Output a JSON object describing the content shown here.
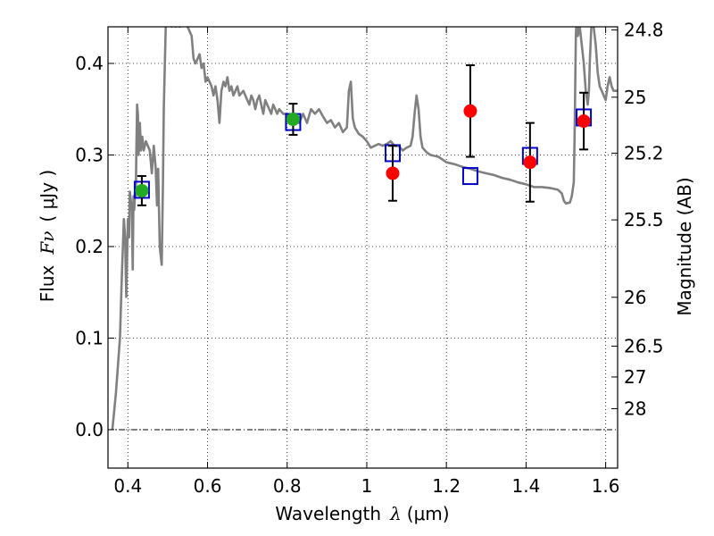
{
  "chart_data": {
    "type": "scatter",
    "title": "",
    "xlabel": "Wavelength",
    "xlabel_symbol": "λ",
    "xlabel_unit": "(μm)",
    "ylabel": "Flux",
    "ylabel_symbol": "Fν",
    "ylabel_unit": "( μJy )",
    "y2label": "Magnitude (AB)",
    "xlim": [
      0.35,
      1.63
    ],
    "ylim": [
      -0.042,
      0.44
    ],
    "grid": true,
    "legend": "none",
    "x_ticks": [
      {
        "value": 0.4,
        "label": "0.4"
      },
      {
        "value": 0.6,
        "label": "0.6"
      },
      {
        "value": 0.8,
        "label": "0.8"
      },
      {
        "value": 1.0,
        "label": "1"
      },
      {
        "value": 1.2,
        "label": "1.2"
      },
      {
        "value": 1.4,
        "label": "1.4"
      },
      {
        "value": 1.6,
        "label": "1.6"
      }
    ],
    "y_ticks": [
      {
        "value": 0.0,
        "label": "0.0"
      },
      {
        "value": 0.1,
        "label": "0.1"
      },
      {
        "value": 0.2,
        "label": "0.2"
      },
      {
        "value": 0.3,
        "label": "0.3"
      },
      {
        "value": 0.4,
        "label": "0.4"
      }
    ],
    "mag_ticks": [
      {
        "value": 24.8,
        "label": "24.8"
      },
      {
        "value": 25.0,
        "label": "25"
      },
      {
        "value": 25.2,
        "label": "25.2"
      },
      {
        "value": 25.5,
        "label": "25.5"
      },
      {
        "value": 26.0,
        "label": "26"
      },
      {
        "value": 26.5,
        "label": "26.5"
      },
      {
        "value": 27.0,
        "label": "27"
      },
      {
        "value": 28.0,
        "label": "28"
      }
    ],
    "zero_line": 0.0,
    "series": [
      {
        "kind": "model_spectrum",
        "color": "#808080",
        "points": [
          [
            0.361,
            0.0
          ],
          [
            0.37,
            0.04
          ],
          [
            0.38,
            0.1
          ],
          [
            0.385,
            0.17
          ],
          [
            0.39,
            0.23
          ],
          [
            0.393,
            0.21
          ],
          [
            0.396,
            0.145
          ],
          [
            0.4,
            0.23
          ],
          [
            0.403,
            0.21
          ],
          [
            0.405,
            0.26
          ],
          [
            0.41,
            0.24
          ],
          [
            0.412,
            0.175
          ],
          [
            0.414,
            0.255
          ],
          [
            0.416,
            0.24
          ],
          [
            0.418,
            0.26
          ],
          [
            0.42,
            0.255
          ],
          [
            0.421,
            0.3
          ],
          [
            0.423,
            0.355
          ],
          [
            0.425,
            0.345
          ],
          [
            0.427,
            0.3
          ],
          [
            0.43,
            0.335
          ],
          [
            0.433,
            0.305
          ],
          [
            0.436,
            0.32
          ],
          [
            0.44,
            0.305
          ],
          [
            0.445,
            0.315
          ],
          [
            0.45,
            0.31
          ],
          [
            0.455,
            0.305
          ],
          [
            0.46,
            0.28
          ],
          [
            0.465,
            0.31
          ],
          [
            0.47,
            0.285
          ],
          [
            0.473,
            0.245
          ],
          [
            0.476,
            0.285
          ],
          [
            0.48,
            0.2
          ],
          [
            0.485,
            0.18
          ],
          [
            0.488,
            0.27
          ],
          [
            0.49,
            0.35
          ],
          [
            0.495,
            0.44
          ],
          [
            0.505,
            0.46
          ],
          [
            0.51,
            0.44
          ],
          [
            0.515,
            0.45
          ],
          [
            0.52,
            0.44
          ],
          [
            0.525,
            0.45
          ],
          [
            0.53,
            0.44
          ],
          [
            0.54,
            0.45
          ],
          [
            0.55,
            0.44
          ],
          [
            0.56,
            0.43
          ],
          [
            0.565,
            0.405
          ],
          [
            0.57,
            0.4
          ],
          [
            0.58,
            0.41
          ],
          [
            0.585,
            0.395
          ],
          [
            0.59,
            0.4
          ],
          [
            0.595,
            0.38
          ],
          [
            0.6,
            0.385
          ],
          [
            0.605,
            0.38
          ],
          [
            0.61,
            0.375
          ],
          [
            0.615,
            0.365
          ],
          [
            0.62,
            0.375
          ],
          [
            0.625,
            0.36
          ],
          [
            0.63,
            0.335
          ],
          [
            0.635,
            0.37
          ],
          [
            0.64,
            0.38
          ],
          [
            0.645,
            0.375
          ],
          [
            0.65,
            0.385
          ],
          [
            0.655,
            0.37
          ],
          [
            0.66,
            0.375
          ],
          [
            0.665,
            0.365
          ],
          [
            0.67,
            0.37
          ],
          [
            0.675,
            0.375
          ],
          [
            0.68,
            0.365
          ],
          [
            0.69,
            0.37
          ],
          [
            0.7,
            0.36
          ],
          [
            0.705,
            0.355
          ],
          [
            0.71,
            0.365
          ],
          [
            0.715,
            0.36
          ],
          [
            0.72,
            0.35
          ],
          [
            0.725,
            0.36
          ],
          [
            0.73,
            0.365
          ],
          [
            0.735,
            0.355
          ],
          [
            0.74,
            0.345
          ],
          [
            0.745,
            0.36
          ],
          [
            0.75,
            0.355
          ],
          [
            0.755,
            0.35
          ],
          [
            0.76,
            0.345
          ],
          [
            0.765,
            0.355
          ],
          [
            0.77,
            0.35
          ],
          [
            0.775,
            0.345
          ],
          [
            0.78,
            0.35
          ],
          [
            0.79,
            0.345
          ],
          [
            0.8,
            0.345
          ],
          [
            0.81,
            0.338
          ],
          [
            0.82,
            0.345
          ],
          [
            0.83,
            0.335
          ],
          [
            0.84,
            0.345
          ],
          [
            0.85,
            0.335
          ],
          [
            0.86,
            0.35
          ],
          [
            0.87,
            0.345
          ],
          [
            0.88,
            0.35
          ],
          [
            0.89,
            0.342
          ],
          [
            0.9,
            0.335
          ],
          [
            0.91,
            0.338
          ],
          [
            0.92,
            0.33
          ],
          [
            0.93,
            0.335
          ],
          [
            0.94,
            0.325
          ],
          [
            0.95,
            0.33
          ],
          [
            0.955,
            0.37
          ],
          [
            0.96,
            0.38
          ],
          [
            0.965,
            0.34
          ],
          [
            0.97,
            0.33
          ],
          [
            0.98,
            0.323
          ],
          [
            0.99,
            0.32
          ],
          [
            1.0,
            0.315
          ],
          [
            1.01,
            0.308
          ],
          [
            1.02,
            0.31
          ],
          [
            1.03,
            0.312
          ],
          [
            1.04,
            0.31
          ],
          [
            1.05,
            0.312
          ],
          [
            1.06,
            0.315
          ],
          [
            1.07,
            0.31
          ],
          [
            1.08,
            0.31
          ],
          [
            1.09,
            0.305
          ],
          [
            1.1,
            0.308
          ],
          [
            1.11,
            0.31
          ],
          [
            1.115,
            0.32
          ],
          [
            1.12,
            0.345
          ],
          [
            1.125,
            0.365
          ],
          [
            1.13,
            0.35
          ],
          [
            1.135,
            0.32
          ],
          [
            1.14,
            0.308
          ],
          [
            1.15,
            0.303
          ],
          [
            1.16,
            0.3
          ],
          [
            1.18,
            0.298
          ],
          [
            1.19,
            0.295
          ],
          [
            1.2,
            0.292
          ],
          [
            1.22,
            0.29
          ],
          [
            1.24,
            0.287
          ],
          [
            1.26,
            0.285
          ],
          [
            1.28,
            0.282
          ],
          [
            1.3,
            0.28
          ],
          [
            1.32,
            0.278
          ],
          [
            1.34,
            0.275
          ],
          [
            1.36,
            0.273
          ],
          [
            1.38,
            0.27
          ],
          [
            1.4,
            0.268
          ],
          [
            1.42,
            0.265
          ],
          [
            1.44,
            0.265
          ],
          [
            1.46,
            0.264
          ],
          [
            1.47,
            0.263
          ],
          [
            1.48,
            0.262
          ],
          [
            1.49,
            0.258
          ],
          [
            1.495,
            0.25
          ],
          [
            1.5,
            0.247
          ],
          [
            1.51,
            0.248
          ],
          [
            1.515,
            0.255
          ],
          [
            1.52,
            0.27
          ],
          [
            1.522,
            0.32
          ],
          [
            1.525,
            0.43
          ],
          [
            1.528,
            0.46
          ],
          [
            1.53,
            0.43
          ],
          [
            1.535,
            0.44
          ],
          [
            1.54,
            0.42
          ],
          [
            1.545,
            0.4
          ],
          [
            1.55,
            0.37
          ],
          [
            1.555,
            0.355
          ],
          [
            1.558,
            0.37
          ],
          [
            1.56,
            0.4
          ],
          [
            1.565,
            0.45
          ],
          [
            1.57,
            0.44
          ],
          [
            1.575,
            0.42
          ],
          [
            1.58,
            0.39
          ],
          [
            1.585,
            0.375
          ],
          [
            1.59,
            0.37
          ],
          [
            1.595,
            0.365
          ],
          [
            1.6,
            0.36
          ],
          [
            1.605,
            0.375
          ],
          [
            1.61,
            0.385
          ],
          [
            1.615,
            0.375
          ],
          [
            1.62,
            0.37
          ],
          [
            1.63,
            0.37
          ]
        ]
      },
      {
        "kind": "model_photometry",
        "marker": "open-square",
        "color": "#0000cc",
        "points": [
          [
            0.435,
            0.262
          ],
          [
            0.815,
            0.336
          ],
          [
            1.065,
            0.302
          ],
          [
            1.26,
            0.277
          ],
          [
            1.41,
            0.299
          ],
          [
            1.545,
            0.341
          ]
        ]
      },
      {
        "kind": "observed",
        "marker": "filled-circle",
        "color": "#22aa22",
        "points": [
          {
            "x": 0.435,
            "y": 0.261,
            "err": 0.016
          },
          {
            "x": 0.815,
            "y": 0.339,
            "err": 0.017
          }
        ]
      },
      {
        "kind": "observed",
        "marker": "filled-circle",
        "color": "#ff0000",
        "points": [
          {
            "x": 1.065,
            "y": 0.28,
            "err": 0.03
          },
          {
            "x": 1.26,
            "y": 0.348,
            "err": 0.05
          },
          {
            "x": 1.41,
            "y": 0.292,
            "err": 0.043
          },
          {
            "x": 1.545,
            "y": 0.337,
            "err": 0.031
          }
        ]
      }
    ]
  }
}
